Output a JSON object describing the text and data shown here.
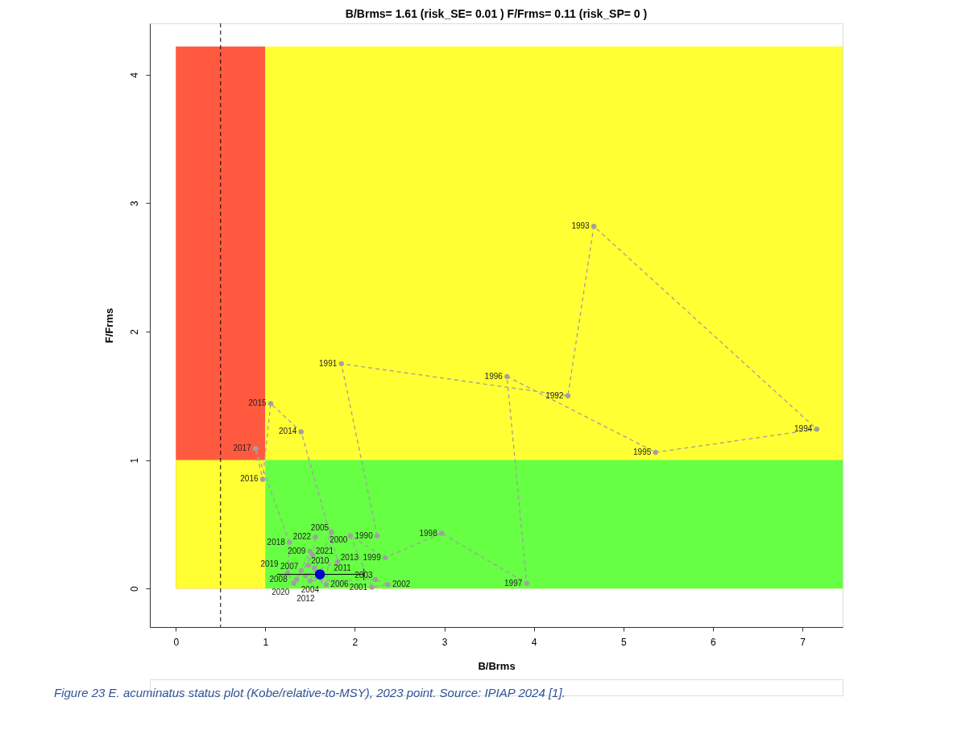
{
  "chart_data": {
    "type": "line",
    "title": "B/Brms= 1.61  (risk_SE= 0.01 )  F/Frms= 0.11  (risk_SP= 0 )",
    "xlabel": "B/Brms",
    "ylabel": "F/Frms",
    "annotations": [
      "Figure 23 E. acuminatus status plot (Kobe/relative-to-MSY), 2023 point. Source: IPIAP 2024 [1].",
      {
        "text": "1990",
        "x": 2.25,
        "y": 0.41
      },
      {
        "text": "1991",
        "x": 1.85,
        "y": 1.75
      },
      {
        "text": "1992",
        "x": 4.38,
        "y": 1.5
      },
      {
        "text": "1993",
        "x": 4.67,
        "y": 2.82
      },
      {
        "text": "1994",
        "x": 7.16,
        "y": 1.24
      },
      {
        "text": "1995",
        "x": 5.36,
        "y": 1.06
      },
      {
        "text": "1996",
        "x": 3.7,
        "y": 1.65
      },
      {
        "text": "1997",
        "x": 3.92,
        "y": 0.04
      },
      {
        "text": "1998",
        "x": 2.97,
        "y": 0.43
      },
      {
        "text": "1999",
        "x": 2.34,
        "y": 0.24
      },
      {
        "text": "2000",
        "x": 1.95,
        "y": 0.41
      },
      {
        "text": "2001",
        "x": 2.19,
        "y": 0.01
      },
      {
        "text": "2002",
        "x": 2.37,
        "y": 0.03
      },
      {
        "text": "2003",
        "x": 2.23,
        "y": 0.07
      },
      {
        "text": "2004",
        "x": 1.5,
        "y": 0.06
      },
      {
        "text": "2005",
        "x": 1.74,
        "y": 0.44
      },
      {
        "text": "2006",
        "x": 1.68,
        "y": 0.03
      },
      {
        "text": "2007",
        "x": 1.4,
        "y": 0.14
      },
      {
        "text": "2008",
        "x": 1.35,
        "y": 0.07
      },
      {
        "text": "2009",
        "x": 1.5,
        "y": 0.29
      },
      {
        "text": "2010",
        "x": 1.48,
        "y": 0.18
      },
      {
        "text": "2011",
        "x": 1.55,
        "y": 0.16
      },
      {
        "text": "2012",
        "x": 1.45,
        "y": 0.1
      },
      {
        "text": "2013",
        "x": 1.81,
        "y": 0.21
      },
      {
        "text": "2014",
        "x": 1.4,
        "y": 1.22
      },
      {
        "text": "2015",
        "x": 1.06,
        "y": 1.44
      },
      {
        "text": "2016",
        "x": 0.97,
        "y": 0.85
      },
      {
        "text": "2017",
        "x": 0.89,
        "y": 1.09
      },
      {
        "text": "2018",
        "x": 1.27,
        "y": 0.36
      },
      {
        "text": "2019",
        "x": 1.25,
        "y": 0.12
      },
      {
        "text": "2020",
        "x": 1.32,
        "y": 0.04
      },
      {
        "text": "2021",
        "x": 1.53,
        "y": 0.26
      },
      {
        "text": "2022",
        "x": 1.56,
        "y": 0.4
      }
    ],
    "xlim": [
      -0.29,
      7.45
    ],
    "ylim": [
      -0.3,
      4.4
    ],
    "xticks": [
      0,
      1,
      2,
      3,
      4,
      5,
      6,
      7
    ],
    "yticks": [
      0,
      1,
      2,
      3,
      4
    ],
    "grid": false,
    "ref_lines": [
      {
        "axis": "x",
        "value": 0.5,
        "color": "#000000",
        "line_style": "dashed"
      }
    ],
    "series": [
      {
        "type": "area",
        "x": [
          0,
          1
        ],
        "values": [
          4.22,
          4.22
        ],
        "color": "#ff5a40"
      },
      {
        "type": "area",
        "x": [
          1,
          7.45
        ],
        "values": [
          4.22,
          4.22
        ],
        "color": "#ffff33"
      },
      {
        "type": "area",
        "x": [
          0,
          1
        ],
        "values": [
          1,
          1
        ],
        "color": "#ffff33"
      },
      {
        "type": "area",
        "x": [
          1,
          7.45
        ],
        "values": [
          1,
          1
        ],
        "color": "#66ff44"
      },
      {
        "marker": "circle",
        "line_style": "dashed",
        "color": "#a0a0a0",
        "x": [
          2.25,
          1.85,
          4.38,
          4.67,
          7.16,
          5.36,
          3.7,
          3.92,
          2.97,
          2.34,
          1.95,
          2.19,
          2.37,
          2.23,
          1.5,
          1.74,
          1.68,
          1.4,
          1.35,
          1.5,
          1.48,
          1.55,
          1.45,
          1.81,
          1.4,
          1.06,
          0.97,
          0.89,
          1.27,
          1.25,
          1.32,
          1.53,
          1.56
        ],
        "values": [
          0.41,
          1.75,
          1.5,
          2.82,
          1.24,
          1.06,
          1.65,
          0.04,
          0.43,
          0.24,
          0.41,
          0.01,
          0.03,
          0.07,
          0.06,
          0.44,
          0.03,
          0.14,
          0.07,
          0.29,
          0.18,
          0.16,
          0.1,
          0.21,
          1.22,
          1.44,
          0.85,
          1.09,
          0.36,
          0.12,
          0.04,
          0.26,
          0.4
        ]
      },
      {
        "type": "scatter",
        "marker": "circle",
        "color": "#0000cc",
        "x": [
          1.61
        ],
        "values": [
          0.11
        ],
        "xerrors": [
          [
            1.13,
            2.1
          ]
        ]
      }
    ]
  }
}
